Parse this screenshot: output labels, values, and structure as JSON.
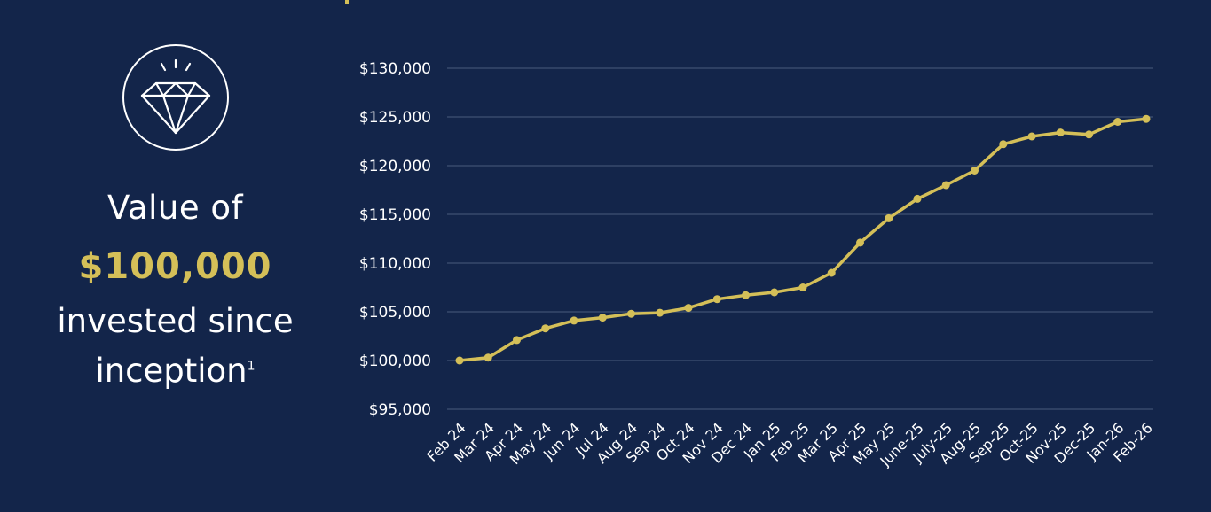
{
  "panel": {
    "title_line1": "Value of",
    "amount": "$100,000",
    "title_line2": "invested since",
    "title_line3": "inception",
    "footnote": "1",
    "icon": "diamond-icon"
  },
  "colors": {
    "background": "#13254a",
    "accent": "#d4bf58",
    "gridline": "#4a5b7c",
    "text": "#ffffff"
  },
  "chart_data": {
    "type": "line",
    "title": "",
    "xlabel": "",
    "ylabel": "",
    "ylim": [
      95000,
      130000
    ],
    "yticks": [
      95000,
      100000,
      105000,
      110000,
      115000,
      120000,
      125000,
      130000
    ],
    "ytick_labels": [
      "$95,000",
      "$100,000",
      "$105,000",
      "$110,000",
      "$115,000",
      "$120,000",
      "$125,000",
      "$130,000"
    ],
    "categories": [
      "Feb 24",
      "Mar 24",
      "Apr 24",
      "May 24",
      "Jun 24",
      "Jul 24",
      "Aug 24",
      "Sep 24",
      "Oct 24",
      "Nov 24",
      "Dec 24",
      "Jan 25",
      "Feb 25",
      "Mar 25",
      "Apr 25",
      "May 25",
      "June-25",
      "July-25",
      "Aug-25",
      "Sep-25",
      "Oct-25",
      "Nov-25",
      "Dec-25",
      "Jan-26",
      "Feb-26"
    ],
    "series": [
      {
        "name": "Value of $100,000",
        "values": [
          100000,
          100300,
          102100,
          103300,
          104100,
          104400,
          104800,
          104900,
          105400,
          106300,
          106700,
          107000,
          107500,
          109000,
          112100,
          114600,
          116600,
          118000,
          119500,
          122200,
          123000,
          123400,
          123200,
          124500,
          124800
        ]
      }
    ]
  }
}
